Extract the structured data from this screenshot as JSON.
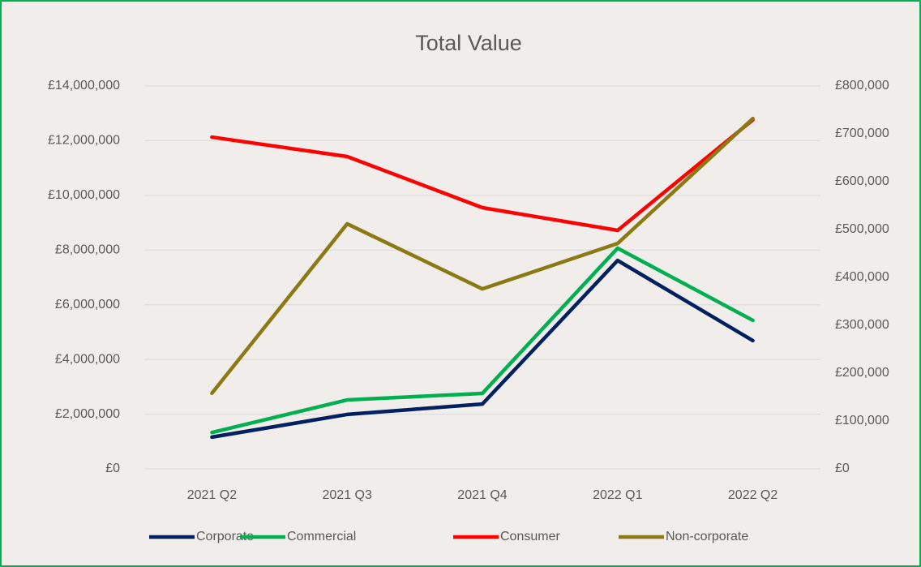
{
  "chart_data": {
    "type": "line",
    "title": "Total Value",
    "categories": [
      "2021 Q2",
      "2021 Q3",
      "2021 Q4",
      "2022 Q1",
      "2022 Q2"
    ],
    "series": [
      {
        "name": "Corporate",
        "color": "#002060",
        "values": [
          1160000,
          1990000,
          2370000,
          7620000,
          4690000
        ]
      },
      {
        "name": "Commercial",
        "color": "#00b050",
        "values": [
          1330000,
          2520000,
          2760000,
          8070000,
          5430000
        ]
      },
      {
        "name": "Consumer",
        "color": "#ff0000",
        "values": [
          12130000,
          11420000,
          9550000,
          8720000,
          12760000
        ]
      },
      {
        "name": "Non-corporate",
        "color": "#8b7a13",
        "axis": "y2",
        "values": [
          158000,
          512000,
          376000,
          471000,
          732000
        ]
      }
    ],
    "ylim": [
      0,
      14000000
    ],
    "yticks": [
      {
        "value": 0,
        "label": "£0"
      },
      {
        "value": 2000000,
        "label": "£2,000,000"
      },
      {
        "value": 4000000,
        "label": "£4,000,000"
      },
      {
        "value": 6000000,
        "label": "£6,000,000"
      },
      {
        "value": 8000000,
        "label": "£8,000,000"
      },
      {
        "value": 10000000,
        "label": "£10,000,000"
      },
      {
        "value": 12000000,
        "label": "£12,000,000"
      },
      {
        "value": 14000000,
        "label": "£14,000,000"
      }
    ],
    "y2lim": [
      0,
      800000
    ],
    "y2ticks": [
      {
        "value": 0,
        "label": "£0"
      },
      {
        "value": 100000,
        "label": "£100,000"
      },
      {
        "value": 200000,
        "label": "£200,000"
      },
      {
        "value": 300000,
        "label": "£300,000"
      },
      {
        "value": 400000,
        "label": "£400,000"
      },
      {
        "value": 500000,
        "label": "£500,000"
      },
      {
        "value": 600000,
        "label": "£600,000"
      },
      {
        "value": 700000,
        "label": "£700,000"
      },
      {
        "value": 800000,
        "label": "£800,000"
      }
    ],
    "grid": true,
    "legend": "bottom"
  }
}
